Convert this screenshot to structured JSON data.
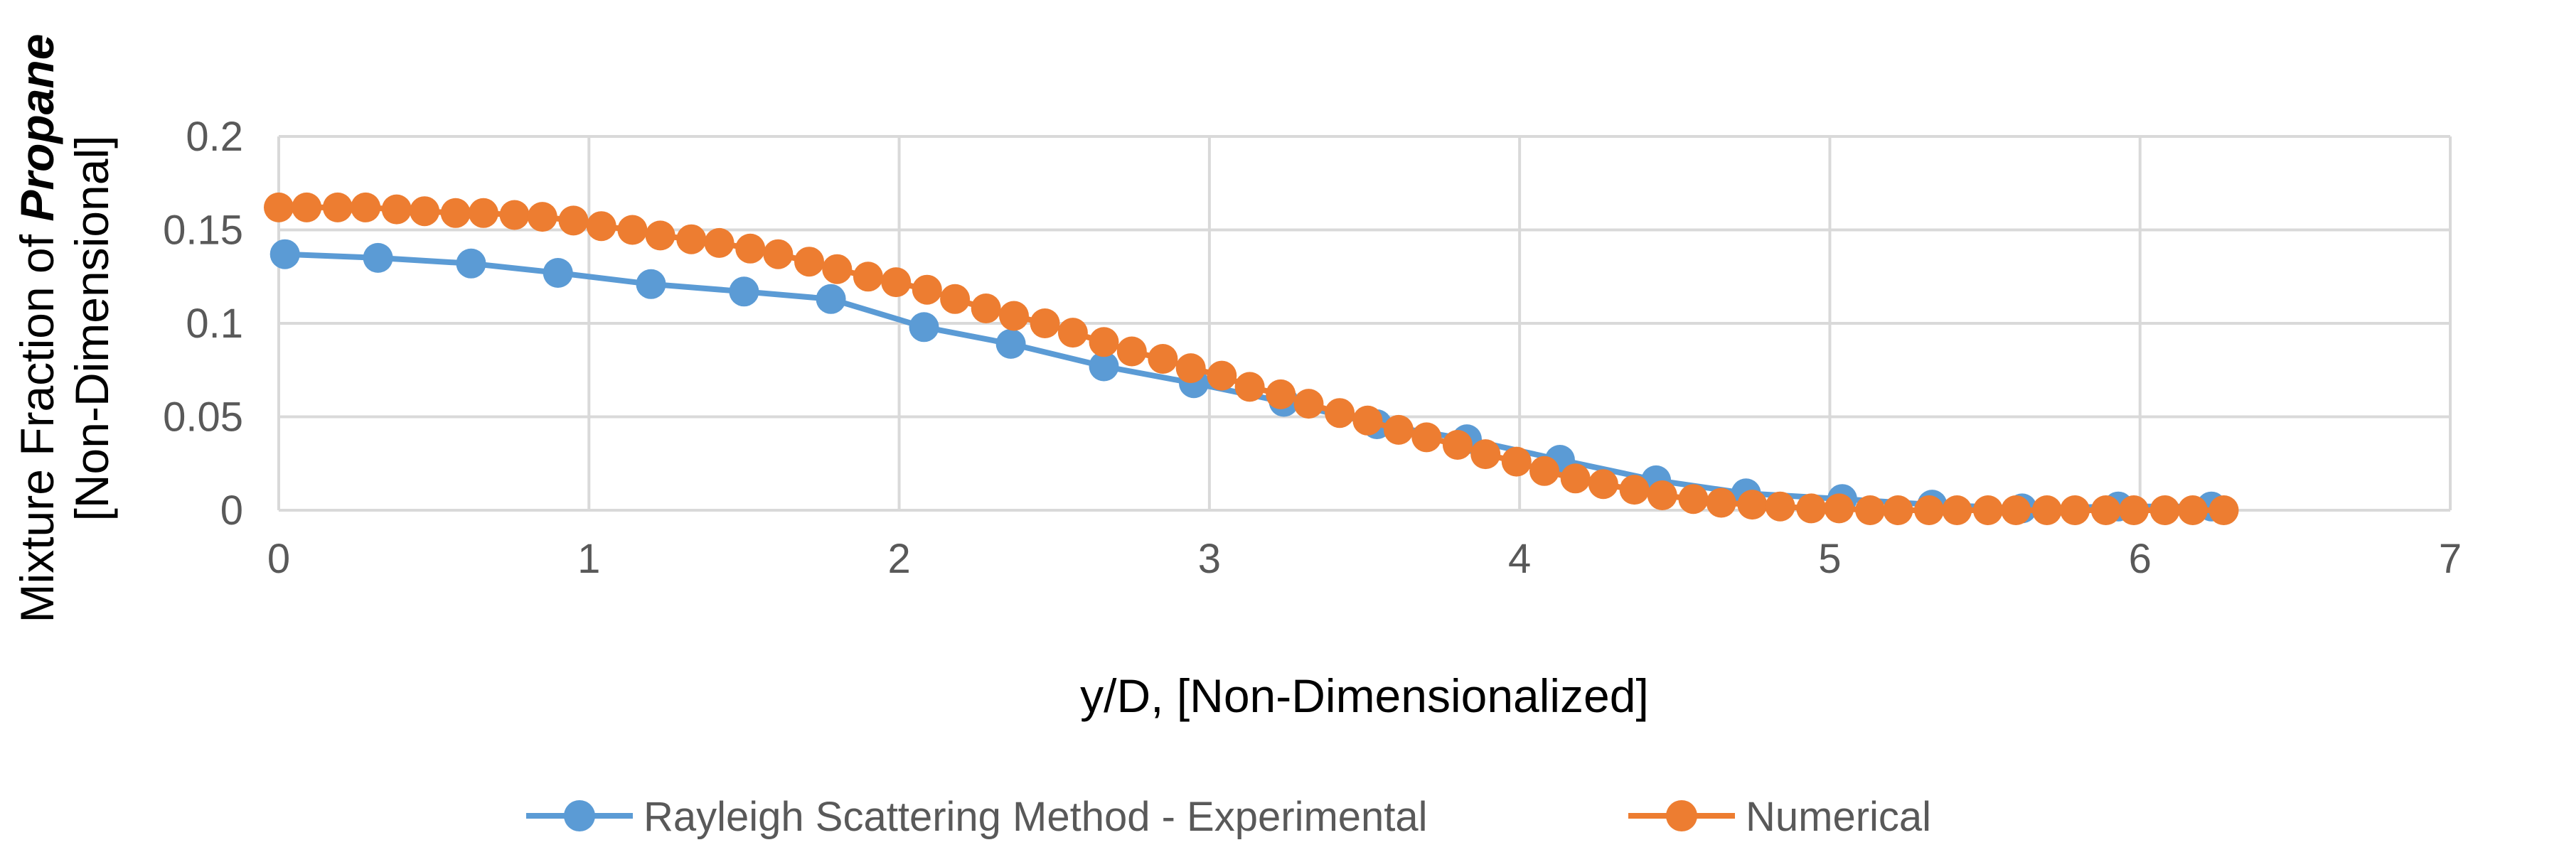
{
  "chart_data": {
    "type": "line",
    "xlabel": "y/D, [Non-Dimensionalized]",
    "ylabel": {
      "line1_prefix": "Mixture Fraction of ",
      "line1_emphasis": "Propane",
      "line2": "[Non-Dimensional]"
    },
    "xlim": [
      0,
      7
    ],
    "ylim": [
      0,
      0.2
    ],
    "x_ticks": [
      "0",
      "1",
      "2",
      "3",
      "4",
      "5",
      "6",
      "7"
    ],
    "y_ticks": [
      "0",
      "0.05",
      "0.1",
      "0.15",
      "0.2"
    ],
    "grid": true,
    "legend_position": "bottom",
    "series": [
      {
        "name": "Rayleigh Scattering Method - Experimental",
        "color": "#5B9BD5",
        "x": [
          0.02,
          0.32,
          0.62,
          0.9,
          1.2,
          1.5,
          1.78,
          2.08,
          2.36,
          2.66,
          2.95,
          3.24,
          3.54,
          3.83,
          4.13,
          4.44,
          4.73,
          5.04,
          5.33,
          5.62,
          5.93,
          6.23
        ],
        "y": [
          0.137,
          0.135,
          0.132,
          0.127,
          0.121,
          0.117,
          0.113,
          0.098,
          0.089,
          0.077,
          0.068,
          0.058,
          0.046,
          0.038,
          0.027,
          0.016,
          0.009,
          0.006,
          0.003,
          0.001,
          0.002,
          0.002
        ]
      },
      {
        "name": "Numerical",
        "color": "#ED7D31",
        "x": [
          0.0,
          0.09,
          0.19,
          0.28,
          0.38,
          0.47,
          0.57,
          0.66,
          0.76,
          0.85,
          0.95,
          1.04,
          1.14,
          1.23,
          1.33,
          1.42,
          1.52,
          1.61,
          1.71,
          1.8,
          1.9,
          1.99,
          2.09,
          2.18,
          2.28,
          2.37,
          2.47,
          2.56,
          2.66,
          2.75,
          2.85,
          2.94,
          3.04,
          3.13,
          3.23,
          3.32,
          3.42,
          3.51,
          3.61,
          3.7,
          3.8,
          3.89,
          3.99,
          4.08,
          4.18,
          4.27,
          4.37,
          4.46,
          4.56,
          4.65,
          4.75,
          4.84,
          4.94,
          5.03,
          5.13,
          5.22,
          5.32,
          5.41,
          5.51,
          5.6,
          5.7,
          5.79,
          5.89,
          5.98,
          6.08,
          6.17,
          6.27
        ],
        "y": [
          0.162,
          0.162,
          0.162,
          0.162,
          0.161,
          0.16,
          0.159,
          0.159,
          0.158,
          0.157,
          0.155,
          0.152,
          0.15,
          0.147,
          0.145,
          0.143,
          0.14,
          0.137,
          0.133,
          0.129,
          0.125,
          0.122,
          0.118,
          0.113,
          0.108,
          0.104,
          0.1,
          0.095,
          0.09,
          0.085,
          0.081,
          0.076,
          0.072,
          0.066,
          0.062,
          0.057,
          0.052,
          0.048,
          0.043,
          0.039,
          0.035,
          0.03,
          0.026,
          0.021,
          0.017,
          0.014,
          0.011,
          0.008,
          0.006,
          0.004,
          0.003,
          0.002,
          0.001,
          0.001,
          0.0,
          0.0,
          0.0,
          0.0,
          0.0,
          0.0,
          0.0,
          0.0,
          0.0,
          0.0,
          0.0,
          0.0,
          0.0
        ]
      }
    ]
  }
}
